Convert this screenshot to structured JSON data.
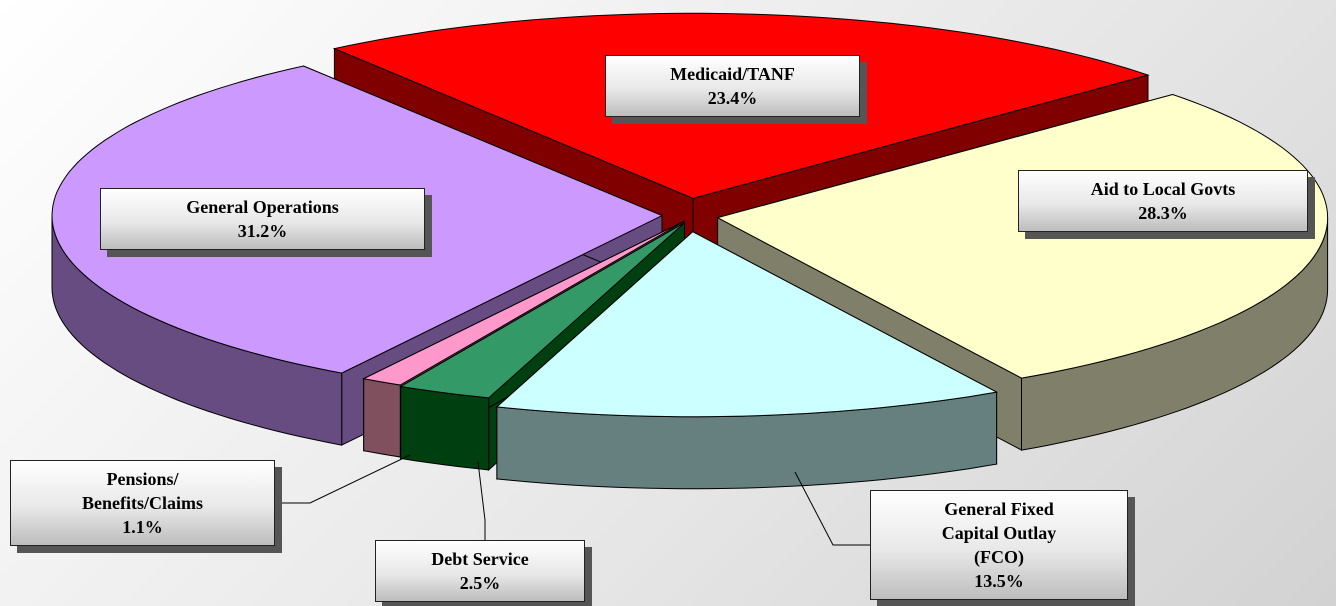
{
  "chart_data": {
    "type": "pie3d",
    "categories": [
      "Medicaid/TANF",
      "Aid to Local Govts",
      "General Fixed\nCapital Outlay\n(FCO)",
      "Debt Service",
      "Pensions/\nBenefits/Claims",
      "General Operations"
    ],
    "values": [
      23.4,
      28.3,
      13.5,
      2.5,
      1.1,
      31.2
    ],
    "value_labels": [
      "23.4%",
      "28.3%",
      "13.5%",
      "2.5%",
      "1.1%",
      "31.2%"
    ],
    "colors": [
      "#ff0000",
      "#ffffcc",
      "#ccffff",
      "#339966",
      "#ff99cc",
      "#cc99ff"
    ],
    "side_colors": [
      "#800000",
      "#80806a",
      "#668080",
      "#004010",
      "#80505f",
      "#664c80"
    ]
  }
}
